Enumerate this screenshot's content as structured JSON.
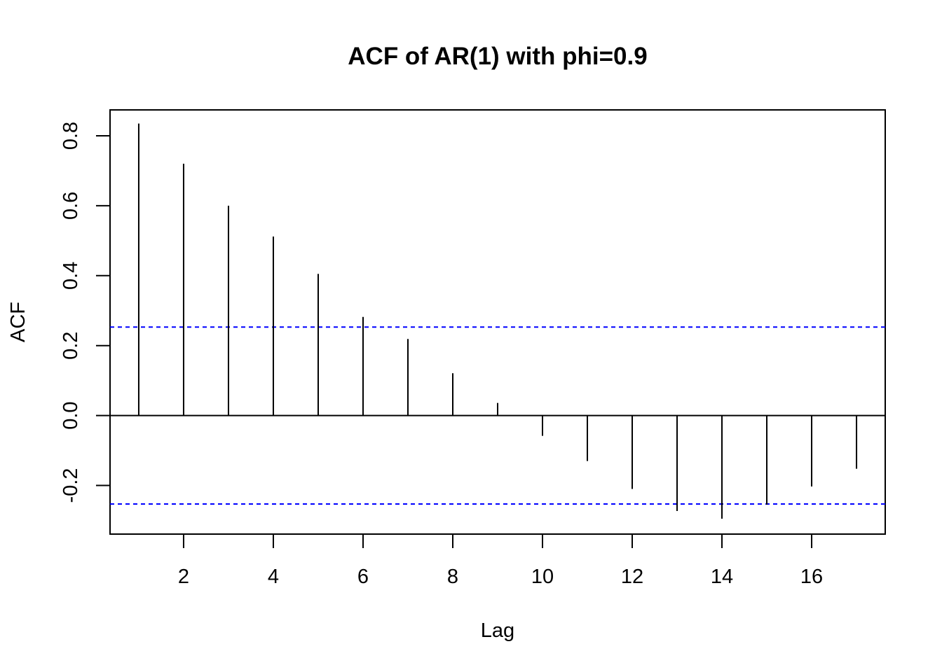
{
  "chart_data": {
    "type": "bar",
    "title": "ACF of AR(1) with phi=0.9",
    "xlabel": "Lag",
    "ylabel": "ACF",
    "x": [
      1,
      2,
      3,
      4,
      5,
      6,
      7,
      8,
      9,
      10,
      11,
      12,
      13,
      14,
      15,
      16,
      17
    ],
    "values": [
      0.835,
      0.72,
      0.6,
      0.512,
      0.405,
      0.282,
      0.219,
      0.121,
      0.036,
      -0.058,
      -0.13,
      -0.21,
      -0.273,
      -0.295,
      -0.255,
      -0.203,
      -0.152
    ],
    "xlim": [
      0.36,
      17.64
    ],
    "ylim": [
      -0.339,
      0.874
    ],
    "xticks": [
      2,
      4,
      6,
      8,
      10,
      12,
      14,
      16
    ],
    "yticks": [
      -0.2,
      0.0,
      0.2,
      0.4,
      0.6,
      0.8
    ],
    "xtick_labels": [
      "2",
      "4",
      "6",
      "8",
      "10",
      "12",
      "14",
      "16"
    ],
    "ytick_labels": [
      "-0.2",
      "0.0",
      "0.2",
      "0.4",
      "0.6",
      "0.8"
    ],
    "confidence_bounds": [
      0.253,
      -0.253
    ],
    "confidence_color": "#0000ff",
    "bar_color": "#000000",
    "zero_line": 0,
    "grid": false,
    "legend": "none"
  }
}
